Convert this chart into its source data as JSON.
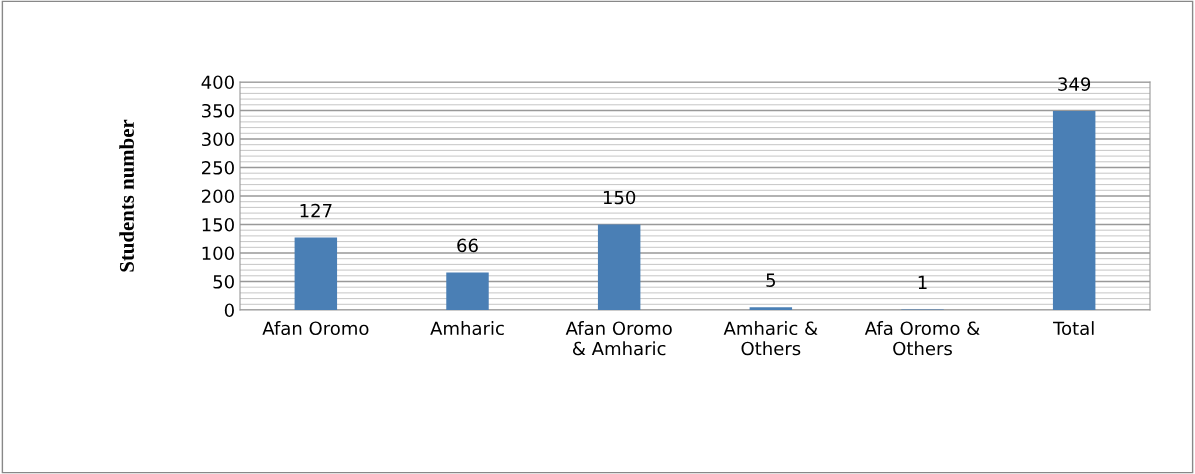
{
  "chart_data": {
    "type": "bar",
    "ylabel": "Students number",
    "categories": [
      "Afan Oromo",
      "Amharic",
      "Afan Oromo\n& Amharic",
      "Amharic &\nOthers",
      "Afa Oromo &\nOthers",
      "Total"
    ],
    "values": [
      127,
      66,
      150,
      5,
      1,
      349
    ],
    "color": "#4a7fb5",
    "ylim": [
      0,
      400
    ],
    "yticks": [
      0,
      50,
      100,
      150,
      200,
      250,
      300,
      350,
      400
    ],
    "grid": "y",
    "data_labels": true,
    "legend": false
  }
}
